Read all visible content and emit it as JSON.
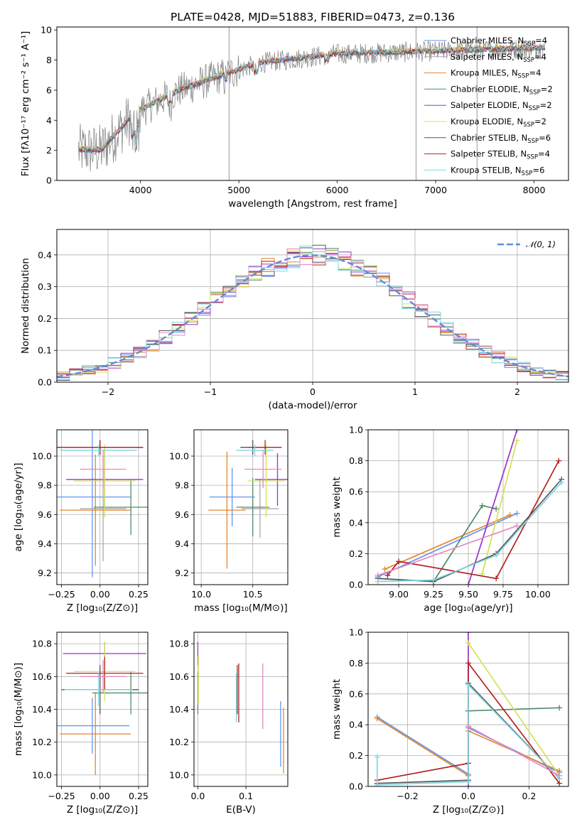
{
  "title": "PLATE=0428, MJD=51883, FIBERID=0473, z=0.136",
  "colors": [
    "#6495ed",
    "#a9a9a9",
    "#e6862e",
    "#548b6c",
    "#9933cc",
    "#d4e157",
    "#555555",
    "#b22222",
    "#7fd6e0",
    "#e38bc0",
    "#606060"
  ],
  "chart_data": [
    {
      "id": "spectrum",
      "type": "line",
      "xlabel": "wavelength [Angstrom, rest frame]",
      "ylabel": "Flux [fλ10⁻¹⁷ erg cm⁻² s⁻¹ A⁻¹]",
      "xlim": [
        3150,
        8350
      ],
      "ylim": [
        0,
        10.2
      ],
      "xticks": [
        4000,
        5000,
        6000,
        7000,
        8000
      ],
      "yticks": [
        0,
        2,
        4,
        6,
        8,
        10
      ],
      "grid": false,
      "legend_position": "upper-right",
      "observed_spike_x": [
        4900,
        6800,
        7420
      ],
      "legend": [
        {
          "name": "Chabrier MILES, N",
          "sub": "SSP",
          "tail": "=4",
          "color": "#6495ed"
        },
        {
          "name": "Salpeter MILES, N",
          "sub": "SSP",
          "tail": "=4",
          "color": "#a9a9a9"
        },
        {
          "name": "Kroupa MILES, N",
          "sub": "SSP",
          "tail": "=4",
          "color": "#e6862e"
        },
        {
          "name": "Chabrier ELODIE, N",
          "sub": "SSP",
          "tail": "=2",
          "color": "#548b6c"
        },
        {
          "name": "Salpeter ELODIE, N",
          "sub": "SSP",
          "tail": "=2",
          "color": "#9933cc"
        },
        {
          "name": "Kroupa ELODIE, N",
          "sub": "SSP",
          "tail": "=2",
          "color": "#d4e157"
        },
        {
          "name": "Chabrier STELIB, N",
          "sub": "SSP",
          "tail": "=6",
          "color": "#555555"
        },
        {
          "name": "Salpeter STELIB, N",
          "sub": "SSP",
          "tail": "=4",
          "color": "#b22222"
        },
        {
          "name": "Kroupa STELIB, N",
          "sub": "SSP",
          "tail": "=6",
          "color": "#7fd6e0"
        }
      ]
    },
    {
      "id": "residuals",
      "type": "histogram",
      "xlabel": "(data-model)/error",
      "ylabel": "Normed distribution",
      "xlim": [
        -2.5,
        2.5
      ],
      "ylim": [
        0,
        0.48
      ],
      "xticks": [
        -2,
        -1,
        0,
        1,
        2
      ],
      "yticks": [
        0.0,
        0.1,
        0.2,
        0.3,
        0.4
      ],
      "grid": true,
      "bins": 40,
      "legend_position": "upper-right",
      "reference_curve": {
        "label": "𝒩(0, 1)",
        "mean": 0,
        "sigma": 1,
        "color": "#5b8fd6"
      }
    },
    {
      "id": "age_vs_Z",
      "type": "errorbar",
      "xlabel": "Z [log₁₀(Z/Z⊙)]",
      "ylabel": "age  [log₁₀(age/yr)]",
      "xlim": [
        -0.28,
        0.31
      ],
      "ylim": [
        9.12,
        10.18
      ],
      "xticks": [
        -0.25,
        0.0,
        0.25
      ],
      "yticks": [
        9.2,
        9.4,
        9.6,
        9.8,
        10.0
      ],
      "points": [
        {
          "x": -0.05,
          "y": 9.72,
          "xerr": 0.25,
          "yerr": 0.55,
          "color": "#6495ed"
        },
        {
          "x": 0.02,
          "y": 9.64,
          "xerr": 0.15,
          "yerr": 0.36,
          "color": "#a9a9a9"
        },
        {
          "x": -0.03,
          "y": 9.63,
          "xerr": 0.23,
          "yerr": 0.38,
          "color": "#e6862e"
        },
        {
          "x": 0.2,
          "y": 9.65,
          "xerr": 0.24,
          "yerr": 0.19,
          "color": "#548b6c"
        },
        {
          "x": 0.03,
          "y": 9.84,
          "xerr": 0.25,
          "yerr": 0.2,
          "color": "#9933cc"
        },
        {
          "x": 0.03,
          "y": 9.83,
          "xerr": 0.2,
          "yerr": 0.25,
          "color": "#d4e157"
        },
        {
          "x": 0.0,
          "y": 10.06,
          "xerr": 0.28,
          "yerr": 0.05,
          "color": "#555555"
        },
        {
          "x": 0.0,
          "y": 10.06,
          "xerr": 0.28,
          "yerr": 0.05,
          "color": "#b22222"
        },
        {
          "x": -0.01,
          "y": 10.04,
          "xerr": 0.25,
          "yerr": 0.04,
          "color": "#7fd6e0"
        },
        {
          "x": 0.02,
          "y": 9.91,
          "xerr": 0.15,
          "yerr": 0.13,
          "color": "#e38bc0"
        }
      ]
    },
    {
      "id": "age_vs_mass",
      "type": "errorbar",
      "xlabel": "mass [log₁₀(M/M⊙)]",
      "ylabel": "",
      "xlim": [
        9.93,
        10.84
      ],
      "ylim": [
        9.12,
        10.18
      ],
      "xticks": [
        10.0,
        10.5
      ],
      "yticks": [
        9.2,
        9.4,
        9.6,
        9.8,
        10.0
      ],
      "points": [
        {
          "x": 10.3,
          "y": 9.72,
          "xerr": 0.22,
          "yerr": 0.2,
          "color": "#6495ed"
        },
        {
          "x": 10.57,
          "y": 9.64,
          "xerr": 0.18,
          "yerr": 0.2,
          "color": "#a9a9a9"
        },
        {
          "x": 10.25,
          "y": 9.63,
          "xerr": 0.18,
          "yerr": 0.4,
          "color": "#e6862e"
        },
        {
          "x": 10.5,
          "y": 9.65,
          "xerr": 0.16,
          "yerr": 0.2,
          "color": "#548b6c"
        },
        {
          "x": 10.74,
          "y": 9.84,
          "xerr": 0.22,
          "yerr": 0.18,
          "color": "#9933cc"
        },
        {
          "x": 10.63,
          "y": 9.83,
          "xerr": 0.18,
          "yerr": 0.25,
          "color": "#d4e157"
        },
        {
          "x": 10.5,
          "y": 10.06,
          "xerr": 0.12,
          "yerr": 0.05,
          "color": "#555555"
        },
        {
          "x": 10.62,
          "y": 10.06,
          "xerr": 0.16,
          "yerr": 0.05,
          "color": "#b22222"
        },
        {
          "x": 10.52,
          "y": 10.04,
          "xerr": 0.18,
          "yerr": 0.04,
          "color": "#7fd6e0"
        },
        {
          "x": 10.6,
          "y": 9.91,
          "xerr": 0.18,
          "yerr": 0.13,
          "color": "#e38bc0"
        }
      ]
    },
    {
      "id": "massweight_vs_age",
      "type": "line",
      "xlabel": "age  [log₁₀(age/yr)]",
      "ylabel": "mass weight",
      "xlim": [
        8.78,
        10.22
      ],
      "ylim": [
        0,
        1.0
      ],
      "xticks": [
        9.0,
        9.25,
        9.5,
        9.75,
        10.0
      ],
      "yticks": [
        0.0,
        0.2,
        0.4,
        0.6,
        0.8,
        1.0
      ],
      "grid": true,
      "series": [
        {
          "color": "#6495ed",
          "points": [
            [
              8.85,
              0.05
            ],
            [
              9.85,
              0.46
            ]
          ]
        },
        {
          "color": "#e6862e",
          "points": [
            [
              8.9,
              0.1
            ],
            [
              9.8,
              0.45
            ]
          ]
        },
        {
          "color": "#548b6c",
          "points": [
            [
              8.85,
              0.04
            ],
            [
              9.25,
              0.02
            ],
            [
              9.6,
              0.51
            ],
            [
              9.7,
              0.49
            ]
          ]
        },
        {
          "color": "#9933cc",
          "points": [
            [
              9.5,
              0.0
            ],
            [
              9.85,
              1.0
            ]
          ]
        },
        {
          "color": "#d4e157",
          "points": [
            [
              9.6,
              0.07
            ],
            [
              9.85,
              0.93
            ]
          ]
        },
        {
          "color": "#555555",
          "points": [
            [
              8.85,
              0.04
            ],
            [
              9.25,
              0.02
            ],
            [
              9.7,
              0.2
            ],
            [
              10.17,
              0.68
            ]
          ]
        },
        {
          "color": "#b22222",
          "points": [
            [
              8.92,
              0.06
            ],
            [
              9.0,
              0.15
            ],
            [
              9.7,
              0.04
            ],
            [
              10.15,
              0.8
            ]
          ]
        },
        {
          "color": "#7fd6e0",
          "points": [
            [
              8.85,
              0.02
            ],
            [
              9.25,
              0.03
            ],
            [
              9.7,
              0.19
            ],
            [
              10.17,
              0.66
            ]
          ]
        },
        {
          "color": "#e38bc0",
          "points": [
            [
              8.85,
              0.06
            ],
            [
              9.85,
              0.38
            ]
          ]
        }
      ]
    },
    {
      "id": "mass_vs_Z",
      "type": "errorbar",
      "xlabel": "Z [log₁₀(Z/Z⊙)]",
      "ylabel": "mass [log₁₀(M/M⊙)]",
      "xlim": [
        -0.28,
        0.31
      ],
      "ylim": [
        9.93,
        10.87
      ],
      "xticks": [
        -0.25,
        0.0,
        0.25
      ],
      "yticks": [
        10.0,
        10.2,
        10.4,
        10.6,
        10.8
      ],
      "points": [
        {
          "x": -0.05,
          "y": 10.3,
          "xerr": 0.24,
          "yerr": 0.17,
          "color": "#6495ed"
        },
        {
          "x": -0.03,
          "y": 10.25,
          "xerr": 0.23,
          "yerr": 0.25,
          "color": "#e6862e"
        },
        {
          "x": 0.2,
          "y": 10.5,
          "xerr": 0.25,
          "yerr": 0.13,
          "color": "#548b6c"
        },
        {
          "x": 0.03,
          "y": 10.74,
          "xerr": 0.27,
          "yerr": 0.07,
          "color": "#9933cc"
        },
        {
          "x": 0.03,
          "y": 10.63,
          "xerr": 0.2,
          "yerr": 0.18,
          "color": "#d4e157"
        },
        {
          "x": 0.0,
          "y": 10.52,
          "xerr": 0.25,
          "yerr": 0.15,
          "color": "#555555"
        },
        {
          "x": 0.03,
          "y": 10.62,
          "xerr": 0.25,
          "yerr": 0.1,
          "color": "#b22222"
        },
        {
          "x": -0.01,
          "y": 10.52,
          "xerr": 0.22,
          "yerr": 0.1,
          "color": "#7fd6e0"
        },
        {
          "x": 0.02,
          "y": 10.6,
          "xerr": 0.15,
          "yerr": 0.1,
          "color": "#e38bc0"
        }
      ]
    },
    {
      "id": "mass_vs_EBV",
      "type": "errorbar",
      "xlabel": "E(B-V)",
      "ylabel": "",
      "xlim": [
        -0.008,
        0.187
      ],
      "ylim": [
        9.93,
        10.87
      ],
      "xticks": [
        0.0,
        0.1
      ],
      "yticks": [
        10.0,
        10.2,
        10.4,
        10.6,
        10.8
      ],
      "points": [
        {
          "x": 0.172,
          "y": 10.25,
          "xerr": 0,
          "yerr": 0.2,
          "color": "#6495ed"
        },
        {
          "x": 0.178,
          "y": 10.21,
          "xerr": 0,
          "yerr": 0.2,
          "color": "#e6862e"
        },
        {
          "x": 0.0,
          "y": 10.5,
          "xerr": 0,
          "yerr": 0.13,
          "color": "#548b6c"
        },
        {
          "x": 0.0,
          "y": 10.74,
          "xerr": 0,
          "yerr": 0.07,
          "color": "#9933cc"
        },
        {
          "x": 0.001,
          "y": 10.58,
          "xerr": 0,
          "yerr": 0.15,
          "color": "#d4e157"
        },
        {
          "x": 0.082,
          "y": 10.52,
          "xerr": 0,
          "yerr": 0.15,
          "color": "#555555"
        },
        {
          "x": 0.085,
          "y": 10.5,
          "xerr": 0,
          "yerr": 0.18,
          "color": "#b22222"
        },
        {
          "x": 0.08,
          "y": 10.47,
          "xerr": 0,
          "yerr": 0.15,
          "color": "#7fd6e0"
        },
        {
          "x": 0.135,
          "y": 10.48,
          "xerr": 0,
          "yerr": 0.2,
          "color": "#e38bc0"
        }
      ]
    },
    {
      "id": "massweight_vs_Z",
      "type": "line",
      "xlabel": "Z [log₁₀(Z/Z⊙)]",
      "ylabel": "mass weight",
      "xlim": [
        -0.33,
        0.33
      ],
      "ylim": [
        0,
        1.0
      ],
      "xticks": [
        -0.2,
        0.0,
        0.2
      ],
      "yticks": [
        0.0,
        0.2,
        0.4,
        0.6,
        0.8,
        1.0
      ],
      "grid": true,
      "series": [
        {
          "color": "#6495ed",
          "points": [
            [
              -0.3,
              0.45
            ],
            [
              0.0,
              0.08
            ],
            [
              0.0,
              0.38
            ],
            [
              0.3,
              0.09
            ]
          ]
        },
        {
          "color": "#e6862e",
          "points": [
            [
              -0.3,
              0.44
            ],
            [
              0.0,
              0.07
            ],
            [
              0.0,
              0.36
            ],
            [
              0.3,
              0.1
            ]
          ]
        },
        {
          "color": "#548b6c",
          "points": [
            [
              0.0,
              0.49
            ],
            [
              0.3,
              0.51
            ]
          ]
        },
        {
          "color": "#9933cc",
          "points": [
            [
              0.0,
              1.0
            ],
            [
              0.0,
              0.0
            ]
          ]
        },
        {
          "color": "#d4e157",
          "points": [
            [
              0.0,
              0.93
            ],
            [
              0.3,
              0.07
            ]
          ]
        },
        {
          "color": "#555555",
          "points": [
            [
              -0.3,
              0.02
            ],
            [
              0.0,
              0.04
            ],
            [
              0.0,
              0.67
            ],
            [
              0.3,
              0.05
            ]
          ]
        },
        {
          "color": "#b22222",
          "points": [
            [
              -0.3,
              0.04
            ],
            [
              0.0,
              0.15
            ],
            [
              0.0,
              0.8
            ],
            [
              0.3,
              0.02
            ]
          ]
        },
        {
          "color": "#7fd6e0",
          "points": [
            [
              -0.3,
              0.19
            ],
            [
              -0.3,
              0.01
            ],
            [
              0.0,
              0.03
            ],
            [
              0.0,
              0.66
            ],
            [
              0.3,
              0.05
            ]
          ]
        },
        {
          "color": "#e38bc0",
          "points": [
            [
              0.0,
              0.39
            ],
            [
              0.3,
              0.07
            ]
          ]
        }
      ]
    }
  ]
}
